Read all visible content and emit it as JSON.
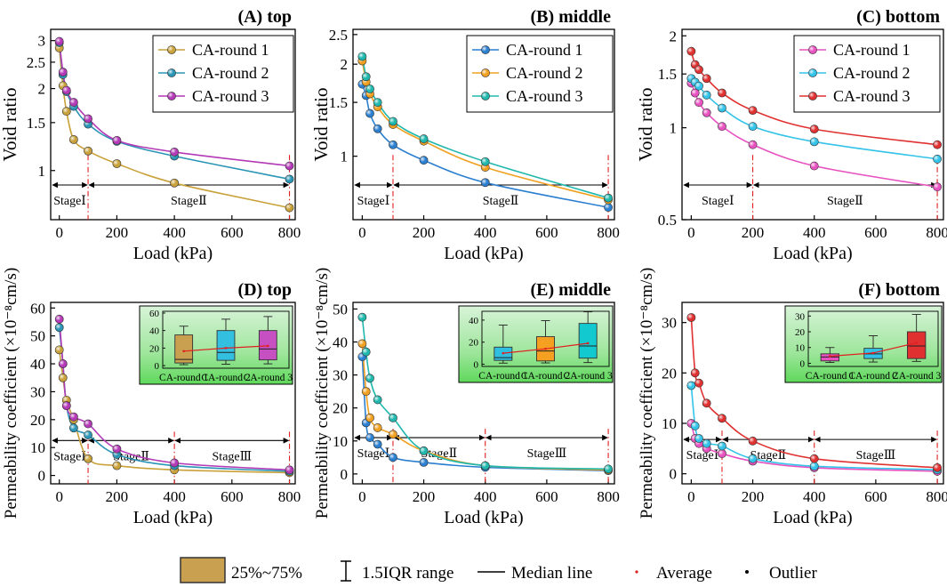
{
  "figure": {
    "legend": {
      "box_label": "25%~75%",
      "range_label": "1.5IQR range",
      "median_label": "Median line",
      "average_label": "Average",
      "outlier_label": "Outlier"
    },
    "colors": {
      "tan": "#c9a050",
      "box_outline": "#333333",
      "avg_line": "#e02020"
    }
  },
  "chart_data": [
    {
      "id": "A",
      "type": "line",
      "title": "(A) top",
      "xlabel": "Load (kPa)",
      "ylabel": "Void ratio",
      "yscale": "log",
      "xlim": [
        -30,
        820
      ],
      "ylim": [
        0.66,
        3.3
      ],
      "xticks": [
        0,
        200,
        400,
        600,
        800
      ],
      "xtick_labels": [
        "0",
        "200",
        "400",
        "600",
        "800"
      ],
      "yticks": [
        1,
        1.5,
        2,
        2.5,
        3
      ],
      "ytick_labels": [
        "1",
        "1.5",
        "2",
        "2.5",
        "3"
      ],
      "stages": [
        {
          "from": -30,
          "to": 100,
          "label": "StageⅠ"
        },
        {
          "from": 100,
          "to": 800,
          "label": "StageⅡ"
        }
      ],
      "vlines": [
        100,
        800
      ],
      "legend_pos": "top-right",
      "x": [
        0,
        12.5,
        25,
        50,
        100,
        200,
        400,
        800
      ],
      "series": [
        {
          "name": "CA-round 1",
          "color": "#c9a13a",
          "values": [
            2.82,
            2.05,
            1.65,
            1.3,
            1.18,
            1.06,
            0.9,
            0.73
          ]
        },
        {
          "name": "CA-round 2",
          "color": "#2b95b6",
          "values": [
            2.95,
            2.25,
            1.95,
            1.72,
            1.48,
            1.28,
            1.13,
            0.93
          ]
        },
        {
          "name": "CA-round 3",
          "color": "#b339b6",
          "values": [
            2.98,
            2.3,
            1.97,
            1.78,
            1.55,
            1.29,
            1.17,
            1.04
          ]
        }
      ]
    },
    {
      "id": "B",
      "type": "line",
      "title": "(B) middle",
      "xlabel": "Load (kPa)",
      "ylabel": "Void ratio",
      "yscale": "log",
      "xlim": [
        -30,
        820
      ],
      "ylim": [
        0.62,
        2.6
      ],
      "xticks": [
        0,
        200,
        400,
        600,
        800
      ],
      "xtick_labels": [
        "0",
        "200",
        "400",
        "600",
        "800"
      ],
      "yticks": [
        1,
        1.5,
        2,
        2.5
      ],
      "ytick_labels": [
        "1",
        "1.5",
        "2",
        "2.5"
      ],
      "stages": [
        {
          "from": -30,
          "to": 100,
          "label": "StageⅠ"
        },
        {
          "from": 100,
          "to": 800,
          "label": "StageⅡ"
        }
      ],
      "vlines": [
        100,
        800
      ],
      "legend_pos": "top-right",
      "x": [
        0,
        12.5,
        25,
        50,
        100,
        200,
        400,
        800
      ],
      "series": [
        {
          "name": "CA-round 1",
          "color": "#2a7fd0",
          "values": [
            1.72,
            1.58,
            1.38,
            1.23,
            1.09,
            0.97,
            0.82,
            0.68
          ]
        },
        {
          "name": "CA-round 2",
          "color": "#f0a020",
          "values": [
            2.05,
            1.75,
            1.6,
            1.45,
            1.27,
            1.12,
            0.92,
            0.72
          ]
        },
        {
          "name": "CA-round 3",
          "color": "#20b8ad",
          "values": [
            2.12,
            1.82,
            1.66,
            1.5,
            1.3,
            1.14,
            0.96,
            0.73
          ]
        }
      ]
    },
    {
      "id": "C",
      "type": "line",
      "title": "(C) bottom",
      "xlabel": "Load (kPa)",
      "ylabel": "Void ratio",
      "yscale": "log",
      "xlim": [
        -30,
        820
      ],
      "ylim": [
        0.5,
        2.1
      ],
      "xticks": [
        0,
        200,
        400,
        600,
        800
      ],
      "xtick_labels": [
        "0",
        "200",
        "400",
        "600",
        "800"
      ],
      "yticks": [
        0.5,
        1,
        1.5,
        2
      ],
      "ytick_labels": [
        "0.5",
        "1",
        "1.5",
        "2"
      ],
      "stages": [
        {
          "from": -30,
          "to": 200,
          "label": "StageⅠ"
        },
        {
          "from": 200,
          "to": 800,
          "label": "StageⅡ"
        }
      ],
      "vlines": [
        200,
        800
      ],
      "legend_pos": "top-right",
      "x": [
        0,
        12.5,
        25,
        50,
        100,
        200,
        400,
        800
      ],
      "series": [
        {
          "name": "CA-round 1",
          "color": "#e752c0",
          "values": [
            1.4,
            1.3,
            1.21,
            1.12,
            1.01,
            0.88,
            0.75,
            0.64
          ]
        },
        {
          "name": "CA-round 2",
          "color": "#33c3e8",
          "values": [
            1.45,
            1.41,
            1.37,
            1.28,
            1.16,
            1.01,
            0.9,
            0.79
          ]
        },
        {
          "name": "CA-round 3",
          "color": "#e03030",
          "values": [
            1.78,
            1.61,
            1.55,
            1.45,
            1.3,
            1.14,
            0.99,
            0.88
          ]
        }
      ]
    },
    {
      "id": "D",
      "type": "line",
      "title": "(D) top",
      "xlabel": "Load (kPa)",
      "ylabel": "Permeability coefficient (×10⁻⁸cm/s)",
      "xlim": [
        -30,
        820
      ],
      "ylim": [
        -3,
        62
      ],
      "xticks": [
        0,
        200,
        400,
        600,
        800
      ],
      "xtick_labels": [
        "0",
        "200",
        "400",
        "600",
        "800"
      ],
      "yticks": [
        0,
        10,
        20,
        30,
        40,
        50,
        60
      ],
      "ytick_labels": [
        "0",
        "10",
        "20",
        "30",
        "40",
        "50",
        "60"
      ],
      "stages": [
        {
          "from": -30,
          "to": 100,
          "label": "StageⅠ"
        },
        {
          "from": 100,
          "to": 400,
          "label": "StageⅡ"
        },
        {
          "from": 400,
          "to": 800,
          "label": "StageⅢ"
        }
      ],
      "stage_arrow_y": 12.5,
      "vlines": [
        100,
        400,
        800
      ],
      "x": [
        0,
        12.5,
        25,
        50,
        100,
        200,
        400,
        800
      ],
      "series": [
        {
          "name": "CA-round 1",
          "color": "#c9a13a",
          "values": [
            45,
            35,
            27,
            20,
            6,
            3.5,
            2,
            1
          ]
        },
        {
          "name": "CA-round 2",
          "color": "#2b95b6",
          "values": [
            53,
            40,
            25,
            17,
            14.5,
            7.5,
            3.5,
            1.5
          ]
        },
        {
          "name": "CA-round 3",
          "color": "#b339b6",
          "values": [
            56,
            40,
            25,
            21,
            18.5,
            9.5,
            4.5,
            2
          ]
        }
      ],
      "inset": {
        "type": "box",
        "categories": [
          "CA-round 1",
          "CA-round 2",
          "CA-round 3"
        ],
        "ylim": [
          -3,
          62
        ],
        "yticks": [
          0,
          20,
          40,
          60
        ],
        "ytick_labels": [
          "0",
          "20",
          "40",
          "60"
        ],
        "colors": [
          "#c9a050",
          "#33bfe0",
          "#c64fc2"
        ],
        "boxes": [
          {
            "min": 1,
            "q1": 3,
            "median": 7,
            "q3": 35,
            "max": 45,
            "mean": 16.5
          },
          {
            "min": 1.5,
            "q1": 6,
            "median": 15,
            "q3": 40,
            "max": 53,
            "mean": 20
          },
          {
            "min": 2,
            "q1": 6.5,
            "median": 19,
            "q3": 40,
            "max": 56,
            "mean": 22.5
          }
        ]
      }
    },
    {
      "id": "E",
      "type": "line",
      "title": "(E) middle",
      "xlabel": "Load (kPa)",
      "ylabel": "Permeability coefficient (×10⁻⁸cm/s)",
      "xlim": [
        -30,
        820
      ],
      "ylim": [
        -3,
        52
      ],
      "xticks": [
        0,
        200,
        400,
        600,
        800
      ],
      "xtick_labels": [
        "0",
        "200",
        "400",
        "600",
        "800"
      ],
      "yticks": [
        0,
        10,
        20,
        30,
        40,
        50
      ],
      "ytick_labels": [
        "0",
        "10",
        "20",
        "30",
        "40",
        "50"
      ],
      "stages": [
        {
          "from": -30,
          "to": 100,
          "label": "StageⅠ"
        },
        {
          "from": 100,
          "to": 400,
          "label": "StageⅡ"
        },
        {
          "from": 400,
          "to": 800,
          "label": "StageⅢ"
        }
      ],
      "stage_arrow_y": 11,
      "vlines": [
        100,
        400,
        800
      ],
      "x": [
        0,
        12.5,
        25,
        50,
        100,
        200,
        400,
        800
      ],
      "series": [
        {
          "name": "CA-round 1",
          "color": "#2a7fd0",
          "values": [
            35.5,
            15.5,
            11,
            9,
            5,
            3.5,
            2,
            1
          ]
        },
        {
          "name": "CA-round 2",
          "color": "#f0a020",
          "values": [
            39.5,
            25,
            17,
            14,
            12,
            7,
            2.5,
            1.2
          ]
        },
        {
          "name": "CA-round 3",
          "color": "#20b8ad",
          "values": [
            47.5,
            37,
            29,
            22.5,
            17,
            7,
            2.5,
            1.5
          ]
        }
      ],
      "inset": {
        "type": "box",
        "categories": [
          "CA-round 1",
          "CA-round 2",
          "CA-round 3"
        ],
        "ylim": [
          -2,
          48
        ],
        "yticks": [
          0,
          20,
          40
        ],
        "ytick_labels": [
          "0",
          "20",
          "40"
        ],
        "colors": [
          "#2fbfe0",
          "#f5a020",
          "#12c9cf"
        ],
        "boxes": [
          {
            "min": 1,
            "q1": 3.5,
            "median": 6,
            "q3": 15.5,
            "max": 35.5,
            "mean": 10
          },
          {
            "min": 1.2,
            "q1": 3,
            "median": 12,
            "q3": 25,
            "max": 39.5,
            "mean": 14
          },
          {
            "min": 1.5,
            "q1": 5.5,
            "median": 16.5,
            "q3": 37,
            "max": 47.5,
            "mean": 19
          }
        ]
      }
    },
    {
      "id": "F",
      "type": "line",
      "title": "(F) bottom",
      "xlabel": "Load (kPa)",
      "ylabel": "Permeability coefficient (×10⁻⁸cm/s)",
      "xlim": [
        -30,
        820
      ],
      "ylim": [
        -2,
        34
      ],
      "xticks": [
        0,
        200,
        400,
        600,
        800
      ],
      "xtick_labels": [
        "0",
        "200",
        "400",
        "600",
        "800"
      ],
      "yticks": [
        0,
        10,
        20,
        30
      ],
      "ytick_labels": [
        "0",
        "10",
        "20",
        "30"
      ],
      "stages": [
        {
          "from": -30,
          "to": 100,
          "label": "StageⅠ"
        },
        {
          "from": 100,
          "to": 400,
          "label": "StageⅡ"
        },
        {
          "from": 400,
          "to": 800,
          "label": "StageⅢ"
        }
      ],
      "stage_arrow_y": 6.8,
      "vlines": [
        100,
        400,
        800
      ],
      "x": [
        0,
        12.5,
        25,
        50,
        100,
        200,
        400,
        800
      ],
      "series": [
        {
          "name": "CA-round 1",
          "color": "#e752c0",
          "values": [
            10,
            7,
            6,
            5,
            4,
            2.5,
            1.2,
            0.5
          ]
        },
        {
          "name": "CA-round 2",
          "color": "#33c3e8",
          "values": [
            17.5,
            9.5,
            7,
            6,
            5.5,
            3,
            1.5,
            0.8
          ]
        },
        {
          "name": "CA-round 3",
          "color": "#e03030",
          "values": [
            31,
            20,
            18,
            14,
            11,
            6.5,
            3,
            1.2
          ]
        }
      ],
      "inset": {
        "type": "box",
        "categories": [
          "CA-round 1",
          "CA-round 2",
          "CA-round 3"
        ],
        "ylim": [
          -2,
          33
        ],
        "yticks": [
          0,
          10,
          20,
          30
        ],
        "ytick_labels": [
          "0",
          "10",
          "20",
          "30"
        ],
        "colors": [
          "#e752c0",
          "#33c3e8",
          "#e03030"
        ],
        "boxes": [
          {
            "min": 0.5,
            "q1": 1.5,
            "median": 4,
            "q3": 6,
            "max": 10,
            "mean": 4.5
          },
          {
            "min": 0.8,
            "q1": 3,
            "median": 6,
            "q3": 9.5,
            "max": 17.5,
            "mean": 6.5
          },
          {
            "min": 1.2,
            "q1": 3,
            "median": 11,
            "q3": 20,
            "max": 31,
            "mean": 13
          }
        ]
      }
    }
  ]
}
